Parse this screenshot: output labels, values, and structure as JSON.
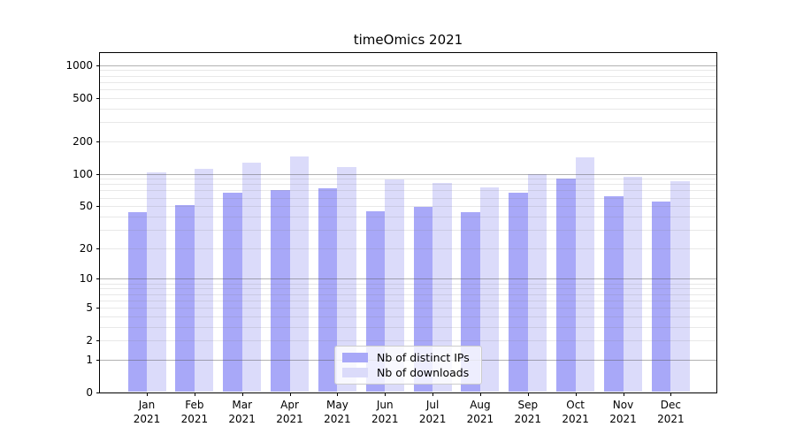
{
  "title": "timeOmics 2021",
  "chart_data": {
    "type": "bar",
    "title": "timeOmics 2021",
    "year_label": "2021",
    "categories": [
      "Jan",
      "Feb",
      "Mar",
      "Apr",
      "May",
      "Jun",
      "Jul",
      "Aug",
      "Sep",
      "Oct",
      "Nov",
      "Dec"
    ],
    "series": [
      {
        "name": "Nb of distinct IPs",
        "color": "#a8a8f8",
        "values": [
          44,
          51,
          67,
          70,
          73,
          45,
          49,
          44,
          67,
          90,
          62,
          55
        ]
      },
      {
        "name": "Nb of downloads",
        "color": "#dbdbfa",
        "values": [
          103,
          110,
          127,
          144,
          116,
          89,
          82,
          75,
          100,
          142,
          94,
          85
        ]
      }
    ],
    "yscale": "log1p",
    "ylim": [
      0,
      1288
    ],
    "yticks_labeled": [
      0,
      1,
      2,
      5,
      10,
      20,
      50,
      100,
      200,
      500,
      1000
    ],
    "ygrid_major": [
      1,
      10,
      100,
      1000
    ],
    "ygrid_minor": [
      2,
      3,
      4,
      5,
      6,
      7,
      8,
      9,
      20,
      30,
      40,
      50,
      60,
      70,
      80,
      90,
      200,
      300,
      400,
      500,
      600,
      700,
      800,
      900
    ],
    "legend_position": "inside-bottom-center",
    "grid": "horizontal"
  },
  "colors": {
    "major_grid": "rgba(85,85,85,0.45)",
    "minor_grid": "rgba(130,130,130,0.18)",
    "spine": "#000000",
    "text": "#000000",
    "legend_border": "#cccccc"
  }
}
